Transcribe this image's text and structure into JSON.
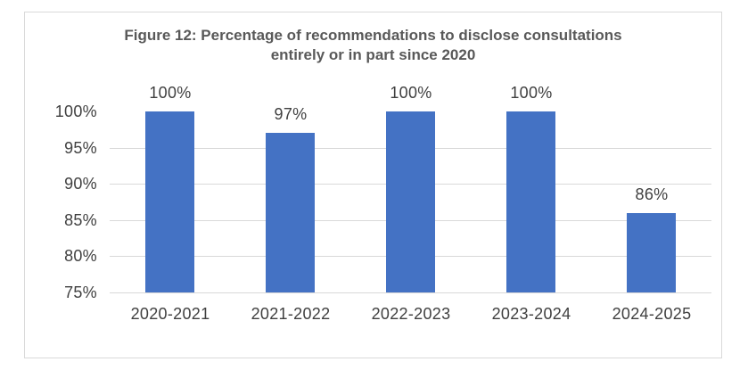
{
  "chart_data": {
    "type": "bar",
    "title": "Figure 12: Percentage of recommendations to disclose consultations entirely or in part since 2020",
    "categories": [
      "2020-2021",
      "2021-2022",
      "2022-2023",
      "2023-2024",
      "2024-2025"
    ],
    "values": [
      100,
      97,
      100,
      100,
      86
    ],
    "data_labels": [
      "100%",
      "97%",
      "100%",
      "100%",
      "86%"
    ],
    "y_tick_labels": [
      "100%",
      "95%",
      "90%",
      "85%",
      "80%",
      "75%"
    ],
    "ylim": [
      75,
      100
    ],
    "xlabel": "",
    "ylabel": "",
    "grid": "horizontal major gridlines at 95/90/85/80/75, none at 100",
    "legend": "none",
    "colors": {
      "bar": "#4472C4",
      "gridline": "#D9D9D9",
      "frame_border": "#D9D9D9",
      "title_text": "#595959",
      "label_text": "#404040",
      "background": "#FFFFFF"
    }
  }
}
